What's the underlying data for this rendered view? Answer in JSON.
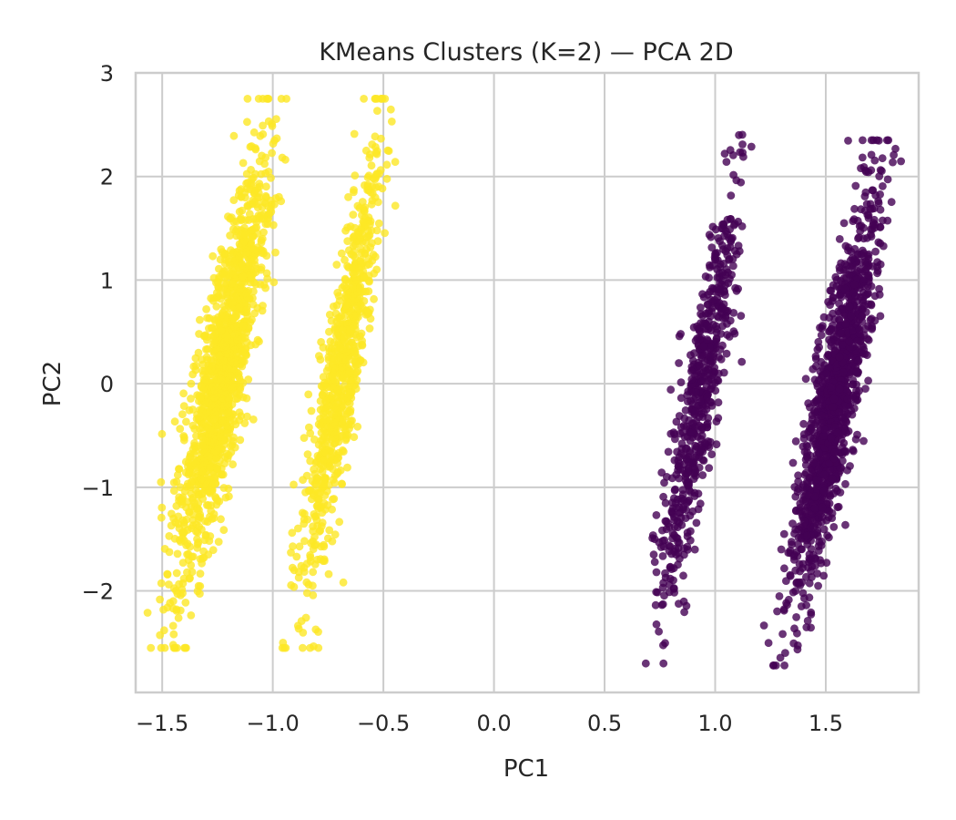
{
  "chart_data": {
    "type": "scatter",
    "title": "KMeans Clusters (K=2) — PCA 2D",
    "xlabel": "PC1",
    "ylabel": "PC2",
    "xlim": [
      -1.62,
      1.92
    ],
    "ylim": [
      -2.98,
      3.0
    ],
    "xticks": [
      -1.5,
      -1.0,
      -0.5,
      0.0,
      0.5,
      1.0,
      1.5
    ],
    "xtick_labels": [
      "−1.5",
      "−1.0",
      "−0.5",
      "0.0",
      "0.5",
      "1.0",
      "1.5"
    ],
    "yticks": [
      -2,
      -1,
      0,
      1,
      2,
      3
    ],
    "ytick_labels": [
      "−2",
      "−1",
      "0",
      "1",
      "2",
      "3"
    ],
    "grid": true,
    "legend": false,
    "colors": {
      "cluster_0": "#440154",
      "cluster_1": "#fde725"
    },
    "clusters": [
      {
        "cluster": 1,
        "color": "#fde725",
        "center": [
          -1.23,
          0.1
        ],
        "y_range": [
          -2.55,
          2.75
        ],
        "slope_x_per_y": 0.085,
        "width": 0.055,
        "points": 1400
      },
      {
        "cluster": 1,
        "color": "#fde725",
        "center": [
          -0.69,
          0.1
        ],
        "y_range": [
          -2.55,
          2.75
        ],
        "slope_x_per_y": 0.075,
        "width": 0.045,
        "points": 800
      },
      {
        "cluster": 0,
        "color": "#440154",
        "center": [
          0.93,
          -0.15
        ],
        "y_range": [
          -2.7,
          2.45
        ],
        "slope_x_per_y": 0.08,
        "width": 0.045,
        "points": 600
      },
      {
        "cluster": 0,
        "color": "#440154",
        "center": [
          1.54,
          -0.15
        ],
        "y_range": [
          -2.72,
          2.35
        ],
        "slope_x_per_y": 0.085,
        "width": 0.05,
        "points": 1300
      }
    ]
  }
}
